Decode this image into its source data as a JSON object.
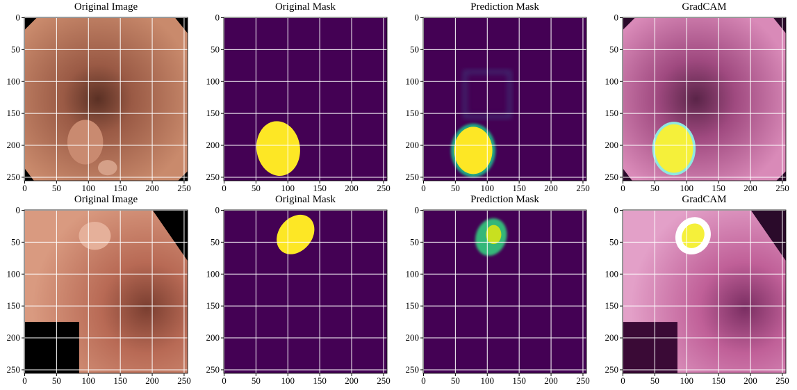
{
  "chart_data": [
    {
      "type": "image",
      "title": "Original Image",
      "xlim": [
        -0.5,
        255.5
      ],
      "ylim": [
        255.5,
        -0.5
      ],
      "xticks": [
        0,
        50,
        100,
        150,
        200,
        250
      ],
      "yticks": [
        0,
        50,
        100,
        150,
        200,
        250
      ],
      "grid": true
    },
    {
      "type": "image",
      "title": "Original Mask",
      "xlim": [
        -0.5,
        255.5
      ],
      "ylim": [
        255.5,
        -0.5
      ],
      "xticks": [
        0,
        50,
        100,
        150,
        200,
        250
      ],
      "yticks": [
        0,
        50,
        100,
        150,
        200,
        250
      ],
      "grid": true
    },
    {
      "type": "image",
      "title": "Prediction Mask",
      "xlim": [
        -0.5,
        255.5
      ],
      "ylim": [
        255.5,
        -0.5
      ],
      "xticks": [
        0,
        50,
        100,
        150,
        200,
        250
      ],
      "yticks": [
        0,
        50,
        100,
        150,
        200,
        250
      ],
      "grid": true
    },
    {
      "type": "image",
      "title": "GradCAM",
      "xlim": [
        -0.5,
        255.5
      ],
      "ylim": [
        255.5,
        -0.5
      ],
      "xticks": [
        0,
        50,
        100,
        150,
        200,
        250
      ],
      "yticks": [
        0,
        50,
        100,
        150,
        200,
        250
      ],
      "grid": true
    },
    {
      "type": "image",
      "title": "Original Image",
      "xlim": [
        -0.5,
        255.5
      ],
      "ylim": [
        255.5,
        -0.5
      ],
      "xticks": [
        0,
        50,
        100,
        150,
        200,
        250
      ],
      "yticks": [
        0,
        50,
        100,
        150,
        200,
        250
      ],
      "grid": true
    },
    {
      "type": "image",
      "title": "Original Mask",
      "xlim": [
        -0.5,
        255.5
      ],
      "ylim": [
        255.5,
        -0.5
      ],
      "xticks": [
        0,
        50,
        100,
        150,
        200,
        250
      ],
      "yticks": [
        0,
        50,
        100,
        150,
        200,
        250
      ],
      "grid": true
    },
    {
      "type": "image",
      "title": "Prediction Mask",
      "xlim": [
        -0.5,
        255.5
      ],
      "ylim": [
        255.5,
        -0.5
      ],
      "xticks": [
        0,
        50,
        100,
        150,
        200,
        250
      ],
      "yticks": [
        0,
        50,
        100,
        150,
        200,
        250
      ],
      "grid": true
    },
    {
      "type": "image",
      "title": "GradCAM",
      "xlim": [
        -0.5,
        255.5
      ],
      "ylim": [
        255.5,
        -0.5
      ],
      "xticks": [
        0,
        50,
        100,
        150,
        200,
        250
      ],
      "yticks": [
        0,
        50,
        100,
        150,
        200,
        250
      ],
      "grid": true
    }
  ]
}
